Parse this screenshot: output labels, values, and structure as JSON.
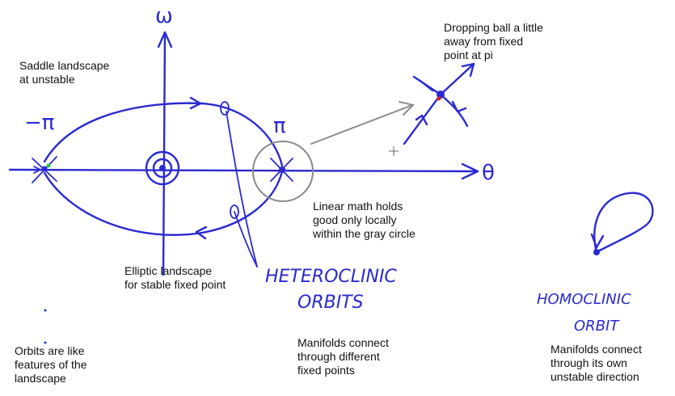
{
  "colors": {
    "ink": "#2a2ad0",
    "gray": "#8a8a8a",
    "text": "#111111",
    "red_dot": "#e02020",
    "green_dot": "#20c040"
  },
  "axes": {
    "x_label": "θ",
    "y_label": "ω"
  },
  "points": {
    "neg_pi": "−π",
    "pi": "π"
  },
  "handwritten": {
    "heteroclinic_line1": "HETEROCLINIC",
    "heteroclinic_line2": "ORBITS",
    "homoclinic_line1": "HOMOCLINIC",
    "homoclinic_line2": "ORBIT"
  },
  "notes": {
    "saddle": "Saddle landscape\nat unstable",
    "dropping": "Dropping ball a little\naway from fixed\npoint at pi",
    "linear": "Linear math holds\ngood only locally\nwithin the gray circle",
    "elliptic": "Elliptic landscape\nfor stable fixed point",
    "orbits_features": "Orbits are like\nfeatures of the\nlandscape",
    "manifolds_different": "Manifolds connect\nthrough different\nfixed points",
    "manifolds_own": "Manifolds connect\nthrough its own\nunstable direction"
  }
}
